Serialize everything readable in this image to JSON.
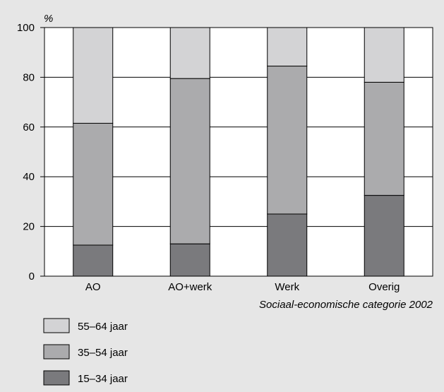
{
  "chart_data": {
    "type": "bar",
    "stacked": true,
    "ylabel": "%",
    "xlabel": "Sociaal-economische categorie 2002",
    "ylim": [
      0,
      100
    ],
    "yticks": [
      0,
      20,
      40,
      60,
      80,
      100
    ],
    "grid": true,
    "legend_position": "bottom-left",
    "categories": [
      "AO",
      "AO+werk",
      "Werk",
      "Overig"
    ],
    "series": [
      {
        "name": "15–34 jaar",
        "color": "#7a7a7d",
        "values": [
          12.5,
          13,
          25,
          32.5
        ]
      },
      {
        "name": "35–54 jaar",
        "color": "#ababad",
        "values": [
          49,
          66.5,
          59.5,
          45.5
        ]
      },
      {
        "name": "55–64 jaar",
        "color": "#d3d3d5",
        "values": [
          38.5,
          20.5,
          15.5,
          22
        ]
      }
    ],
    "legend_order": [
      "55–64 jaar",
      "35–54 jaar",
      "15–34 jaar"
    ]
  }
}
